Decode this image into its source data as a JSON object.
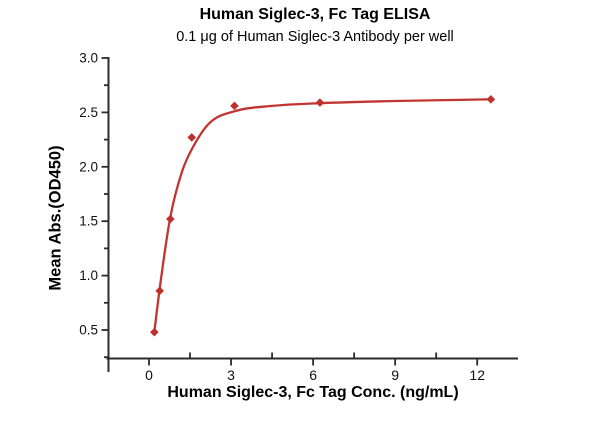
{
  "chart_data": {
    "type": "scatter",
    "title": "Human Siglec-3, Fc Tag ELISA",
    "subtitle": "0.1 μg of Human Siglec-3 Antibody per well",
    "xlabel": "Human Siglec-3, Fc Tag Conc. (ng/mL)",
    "ylabel": "Mean Abs.(OD450)",
    "xlim": [
      -1.45,
      13.5
    ],
    "ylim": [
      0.24,
      3.0
    ],
    "grid": false,
    "legend": false,
    "x_major_ticks": [
      0,
      3,
      6,
      9,
      12
    ],
    "x_tick_labels": [
      "0",
      "3",
      "6",
      "9",
      "12"
    ],
    "x_minor_ticks": [
      1.5,
      4.5,
      7.5,
      10.5
    ],
    "y_major_ticks": [
      0.5,
      1.0,
      1.5,
      2.0,
      2.5,
      3.0
    ],
    "y_tick_labels": [
      "0.5",
      "1.0",
      "1.5",
      "2.0",
      "2.5",
      "3.0"
    ],
    "y_minor_ticks": [
      0.25,
      0.75,
      1.25,
      1.75,
      2.25,
      2.75
    ],
    "series": [
      {
        "name": "Human Siglec-3, Fc Tag",
        "marker": "diamond",
        "points": [
          [
            0.195,
            0.48
          ],
          [
            0.391,
            0.86
          ],
          [
            0.781,
            1.52
          ],
          [
            1.563,
            2.27
          ],
          [
            3.125,
            2.56
          ],
          [
            6.25,
            2.59
          ],
          [
            12.5,
            2.62
          ]
        ],
        "fit_curve": [
          [
            0.195,
            0.48
          ],
          [
            0.391,
            0.88
          ],
          [
            0.781,
            1.54
          ],
          [
            1.2,
            1.95
          ],
          [
            1.563,
            2.16
          ],
          [
            2.2,
            2.4
          ],
          [
            3.125,
            2.51
          ],
          [
            4.5,
            2.56
          ],
          [
            6.25,
            2.585
          ],
          [
            9.0,
            2.605
          ],
          [
            12.5,
            2.62
          ]
        ]
      }
    ],
    "colors": {
      "curve": "#c13531",
      "marker": "#bf302c",
      "axis": "#2b2b2b",
      "tick_text": "#111111",
      "background": "#ffffff"
    }
  }
}
